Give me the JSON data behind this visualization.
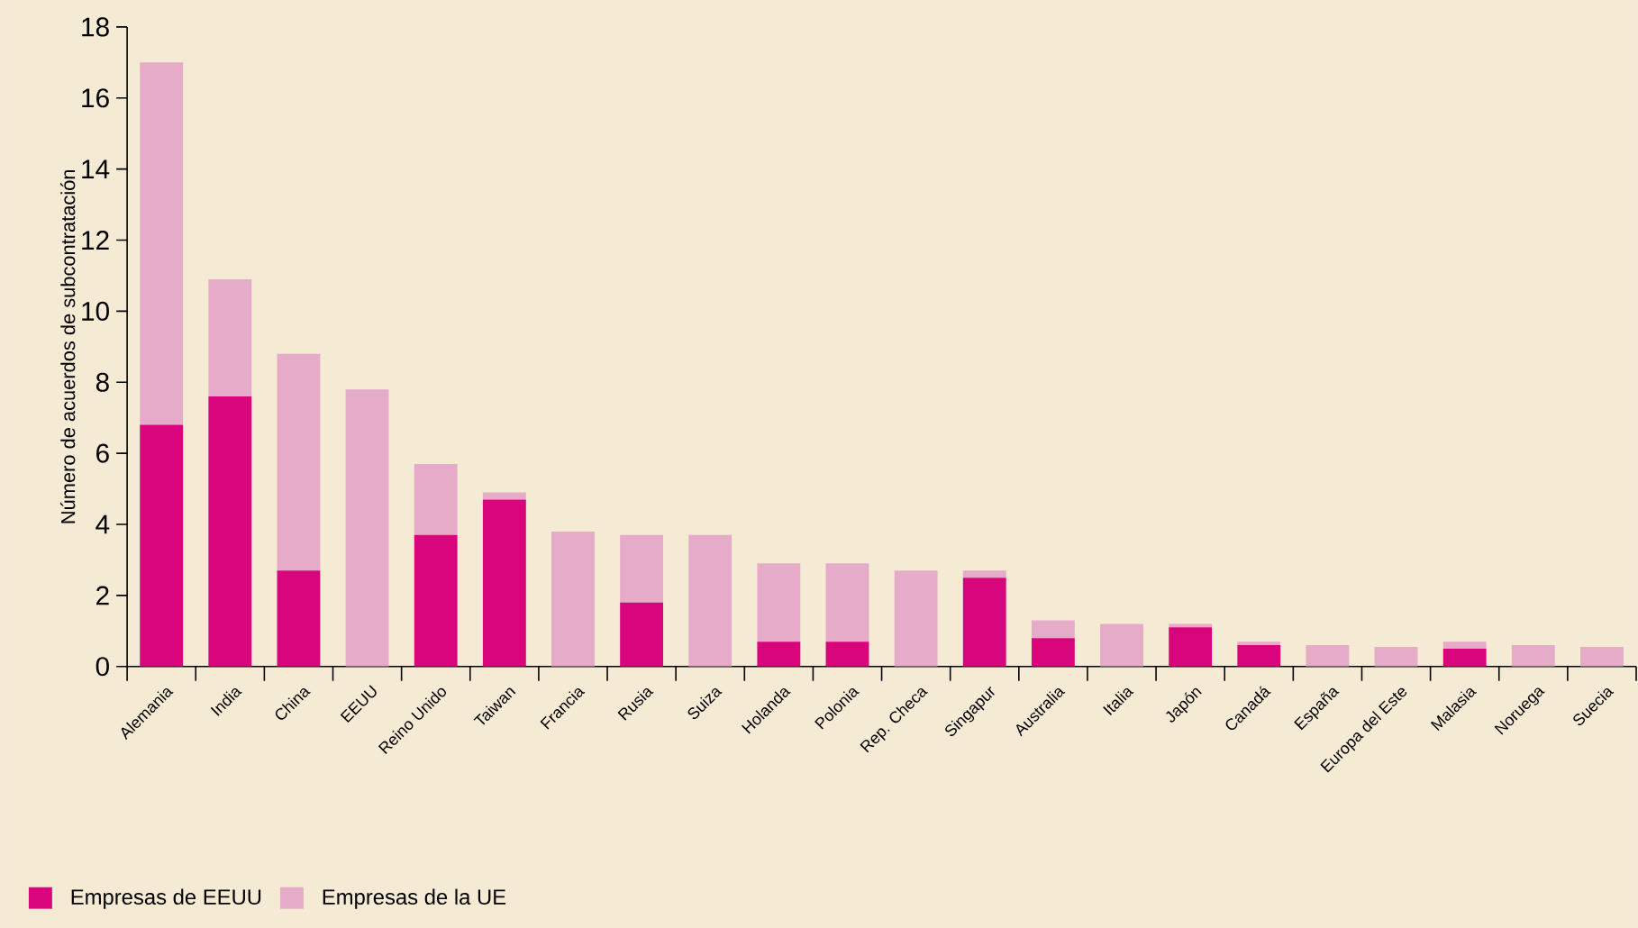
{
  "chart_data": {
    "type": "bar",
    "stacked": true,
    "ylabel": "Número de acuerdos de subcontratación",
    "categories": [
      "Alemania",
      "India",
      "China",
      "EEUU",
      "Reino Unido",
      "Taiwan",
      "Francia",
      "Rusia",
      "Suiza",
      "Holanda",
      "Polonia",
      "Rep. Checa",
      "Singapur",
      "Australia",
      "Italia",
      "Japón",
      "Canadá",
      "España",
      "Europa del Este",
      "Malasia",
      "Noruega",
      "Suecia"
    ],
    "series": [
      {
        "name": "Empresas de EEUU",
        "color": "#d9057c",
        "values": [
          6.8,
          7.6,
          2.7,
          0,
          3.7,
          4.7,
          0,
          1.8,
          0,
          0.7,
          0.7,
          0,
          2.5,
          0.8,
          0,
          1.1,
          0.6,
          0,
          0,
          0.5,
          0,
          0
        ]
      },
      {
        "name": "Empresas de la UE",
        "color": "#e5abc9",
        "values": [
          10.2,
          3.3,
          6.1,
          7.8,
          2.0,
          0.2,
          3.8,
          1.9,
          3.7,
          2.2,
          2.2,
          2.7,
          0.2,
          0.5,
          1.2,
          0.1,
          0.1,
          0.6,
          0.55,
          0.2,
          0.6,
          0.55
        ]
      }
    ],
    "ylim": [
      0,
      18
    ],
    "yticks": [
      0,
      2,
      4,
      6,
      8,
      10,
      12,
      14,
      16,
      18
    ],
    "grid": false,
    "legend": "bottom left"
  }
}
